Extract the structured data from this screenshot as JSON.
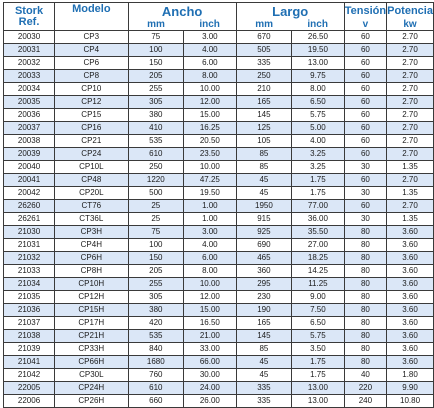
{
  "table": {
    "headers": {
      "stork_line1": "Stork",
      "stork_line2": "Ref.",
      "modelo": "Modelo",
      "ancho": "Ancho",
      "ancho_mm": "mm",
      "ancho_inch": "inch",
      "largo": "Largo",
      "largo_mm": "mm",
      "largo_inch": "inch",
      "tension": "Tensión",
      "tension_unit": "v",
      "potencia": "Potencia",
      "potencia_unit": "kw"
    },
    "rows": [
      [
        "20030",
        "CP3",
        "75",
        "3.00",
        "670",
        "26.50",
        "60",
        "2.70"
      ],
      [
        "20031",
        "CP4",
        "100",
        "4.00",
        "505",
        "19.50",
        "60",
        "2.70"
      ],
      [
        "20032",
        "CP6",
        "150",
        "6.00",
        "335",
        "13.00",
        "60",
        "2.70"
      ],
      [
        "20033",
        "CP8",
        "205",
        "8.00",
        "250",
        "9.75",
        "60",
        "2.70"
      ],
      [
        "20034",
        "CP10",
        "255",
        "10.00",
        "210",
        "8.00",
        "60",
        "2.70"
      ],
      [
        "20035",
        "CP12",
        "305",
        "12.00",
        "165",
        "6.50",
        "60",
        "2.70"
      ],
      [
        "20036",
        "CP15",
        "380",
        "15.00",
        "145",
        "5.75",
        "60",
        "2.70"
      ],
      [
        "20037",
        "CP16",
        "410",
        "16.25",
        "125",
        "5.00",
        "60",
        "2.70"
      ],
      [
        "20038",
        "CP21",
        "535",
        "20.50",
        "105",
        "4.00",
        "60",
        "2.70"
      ],
      [
        "20039",
        "CP24",
        "610",
        "23.50",
        "85",
        "3.25",
        "60",
        "2.70"
      ],
      [
        "20040",
        "CP10L",
        "250",
        "10.00",
        "85",
        "3.25",
        "30",
        "1.35"
      ],
      [
        "20041",
        "CP48",
        "1220",
        "47.25",
        "45",
        "1.75",
        "60",
        "2.70"
      ],
      [
        "20042",
        "CP20L",
        "500",
        "19.50",
        "45",
        "1.75",
        "30",
        "1.35"
      ],
      [
        "26260",
        "CT76",
        "25",
        "1.00",
        "1950",
        "77.00",
        "60",
        "2.70"
      ],
      [
        "26261",
        "CT36L",
        "25",
        "1.00",
        "915",
        "36.00",
        "30",
        "1.35"
      ],
      [
        "21030",
        "CP3H",
        "75",
        "3.00",
        "925",
        "35.50",
        "80",
        "3.60"
      ],
      [
        "21031",
        "CP4H",
        "100",
        "4.00",
        "690",
        "27.00",
        "80",
        "3.60"
      ],
      [
        "21032",
        "CP6H",
        "150",
        "6.00",
        "465",
        "18.25",
        "80",
        "3.60"
      ],
      [
        "21033",
        "CP8H",
        "205",
        "8.00",
        "360",
        "14.25",
        "80",
        "3.60"
      ],
      [
        "21034",
        "CP10H",
        "255",
        "10.00",
        "295",
        "11.25",
        "80",
        "3.60"
      ],
      [
        "21035",
        "CP12H",
        "305",
        "12.00",
        "230",
        "9.00",
        "80",
        "3.60"
      ],
      [
        "21036",
        "CP15H",
        "380",
        "15.00",
        "190",
        "7.50",
        "80",
        "3.60"
      ],
      [
        "21037",
        "CP17H",
        "420",
        "16.50",
        "165",
        "6.50",
        "80",
        "3.60"
      ],
      [
        "21038",
        "CP21H",
        "535",
        "21.00",
        "145",
        "5.75",
        "80",
        "3.60"
      ],
      [
        "21039",
        "CP33H",
        "840",
        "33.00",
        "85",
        "3.50",
        "80",
        "3.60"
      ],
      [
        "21041",
        "CP66H",
        "1680",
        "66.00",
        "45",
        "1.75",
        "80",
        "3.60"
      ],
      [
        "21042",
        "CP30L",
        "760",
        "30.00",
        "45",
        "1.75",
        "40",
        "1.80"
      ],
      [
        "22005",
        "CP24H",
        "610",
        "24.00",
        "335",
        "13.00",
        "220",
        "9.90"
      ],
      [
        "22006",
        "CP26H",
        "660",
        "26.00",
        "335",
        "13.00",
        "240",
        "10.80"
      ]
    ]
  }
}
